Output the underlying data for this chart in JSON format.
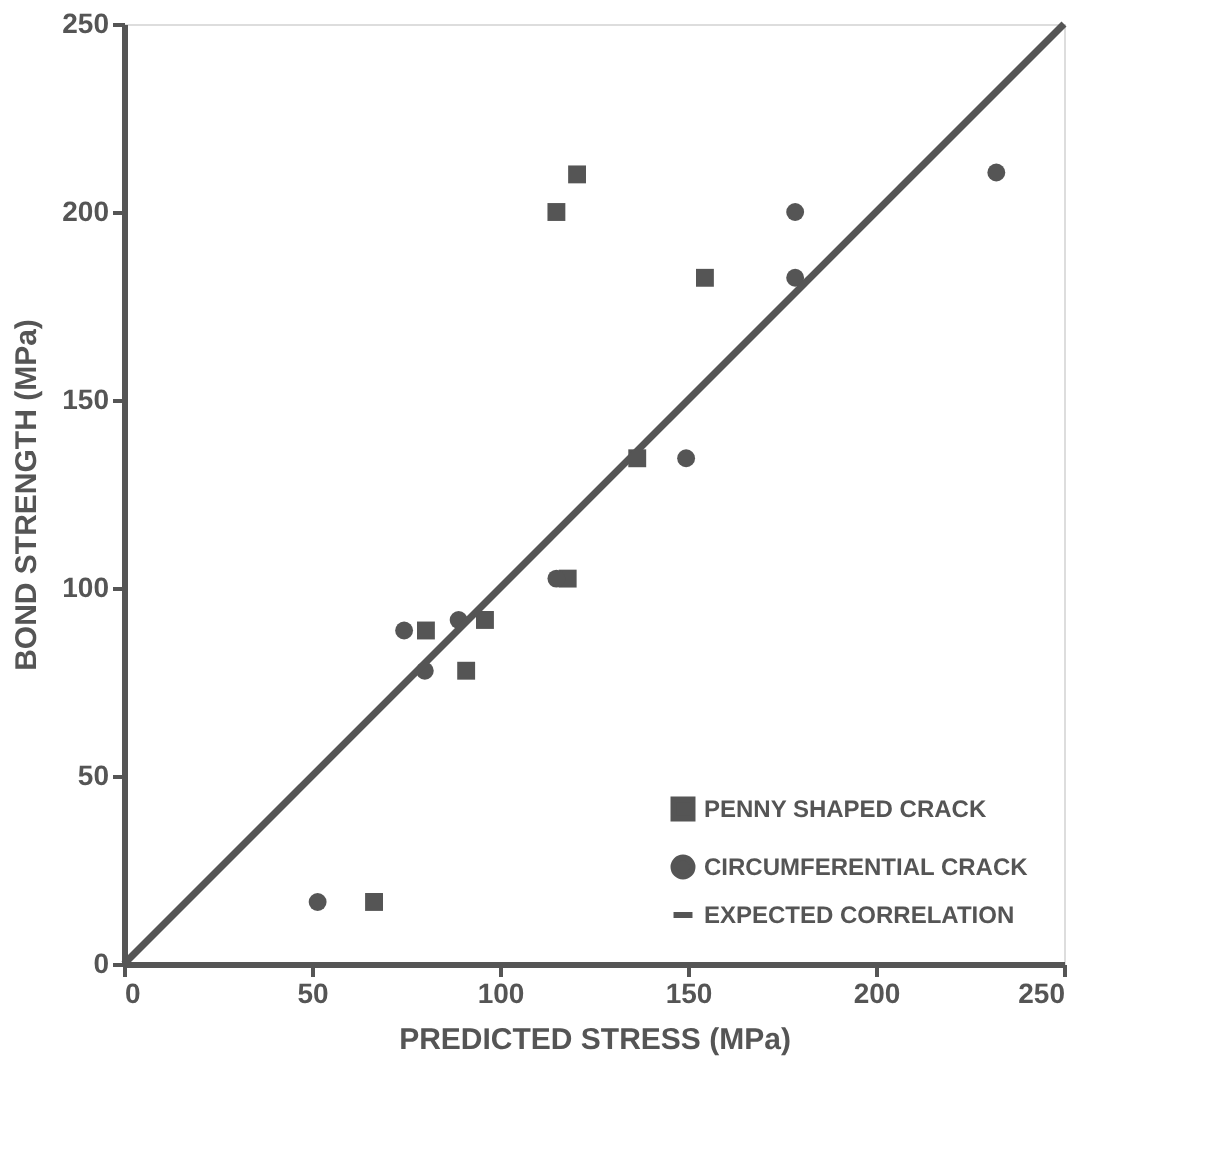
{
  "chart_data": {
    "type": "scatter",
    "xlabel": "PREDICTED STRESS (MPa)",
    "ylabel": "BOND STRENGTH (MPa)",
    "xlim": [
      0,
      250
    ],
    "ylim": [
      0,
      250
    ],
    "xticks": [
      0,
      50,
      100,
      150,
      200,
      250
    ],
    "yticks": [
      0,
      50,
      100,
      150,
      200,
      250
    ],
    "grid": false,
    "legend": "bottom right",
    "series": [
      {
        "name": "PENNY SHAPED CRACK",
        "marker": "square",
        "color": "#555555",
        "x": [
          66.5,
          80.3,
          96,
          91,
          118,
          120.5,
          115,
          154.5,
          136.5
        ],
        "values": [
          16.5,
          88.7,
          91.5,
          78,
          102.5,
          210,
          200,
          182.5,
          134.5
        ]
      },
      {
        "name": "CIRCUMFERENTIAL CRACK",
        "marker": "circle",
        "color": "#555555",
        "x": [
          51.5,
          74.5,
          89,
          80,
          115,
          178.5,
          232,
          178.5,
          149.5
        ],
        "values": [
          16.5,
          88.7,
          91.5,
          78,
          102.5,
          200,
          210.5,
          182.5,
          134.5
        ]
      },
      {
        "name": "EXPECTED CORRELATION",
        "type": "line",
        "line_style": "solid",
        "color": "#555555",
        "x": [
          0,
          250
        ],
        "values": [
          0,
          250
        ]
      }
    ]
  }
}
